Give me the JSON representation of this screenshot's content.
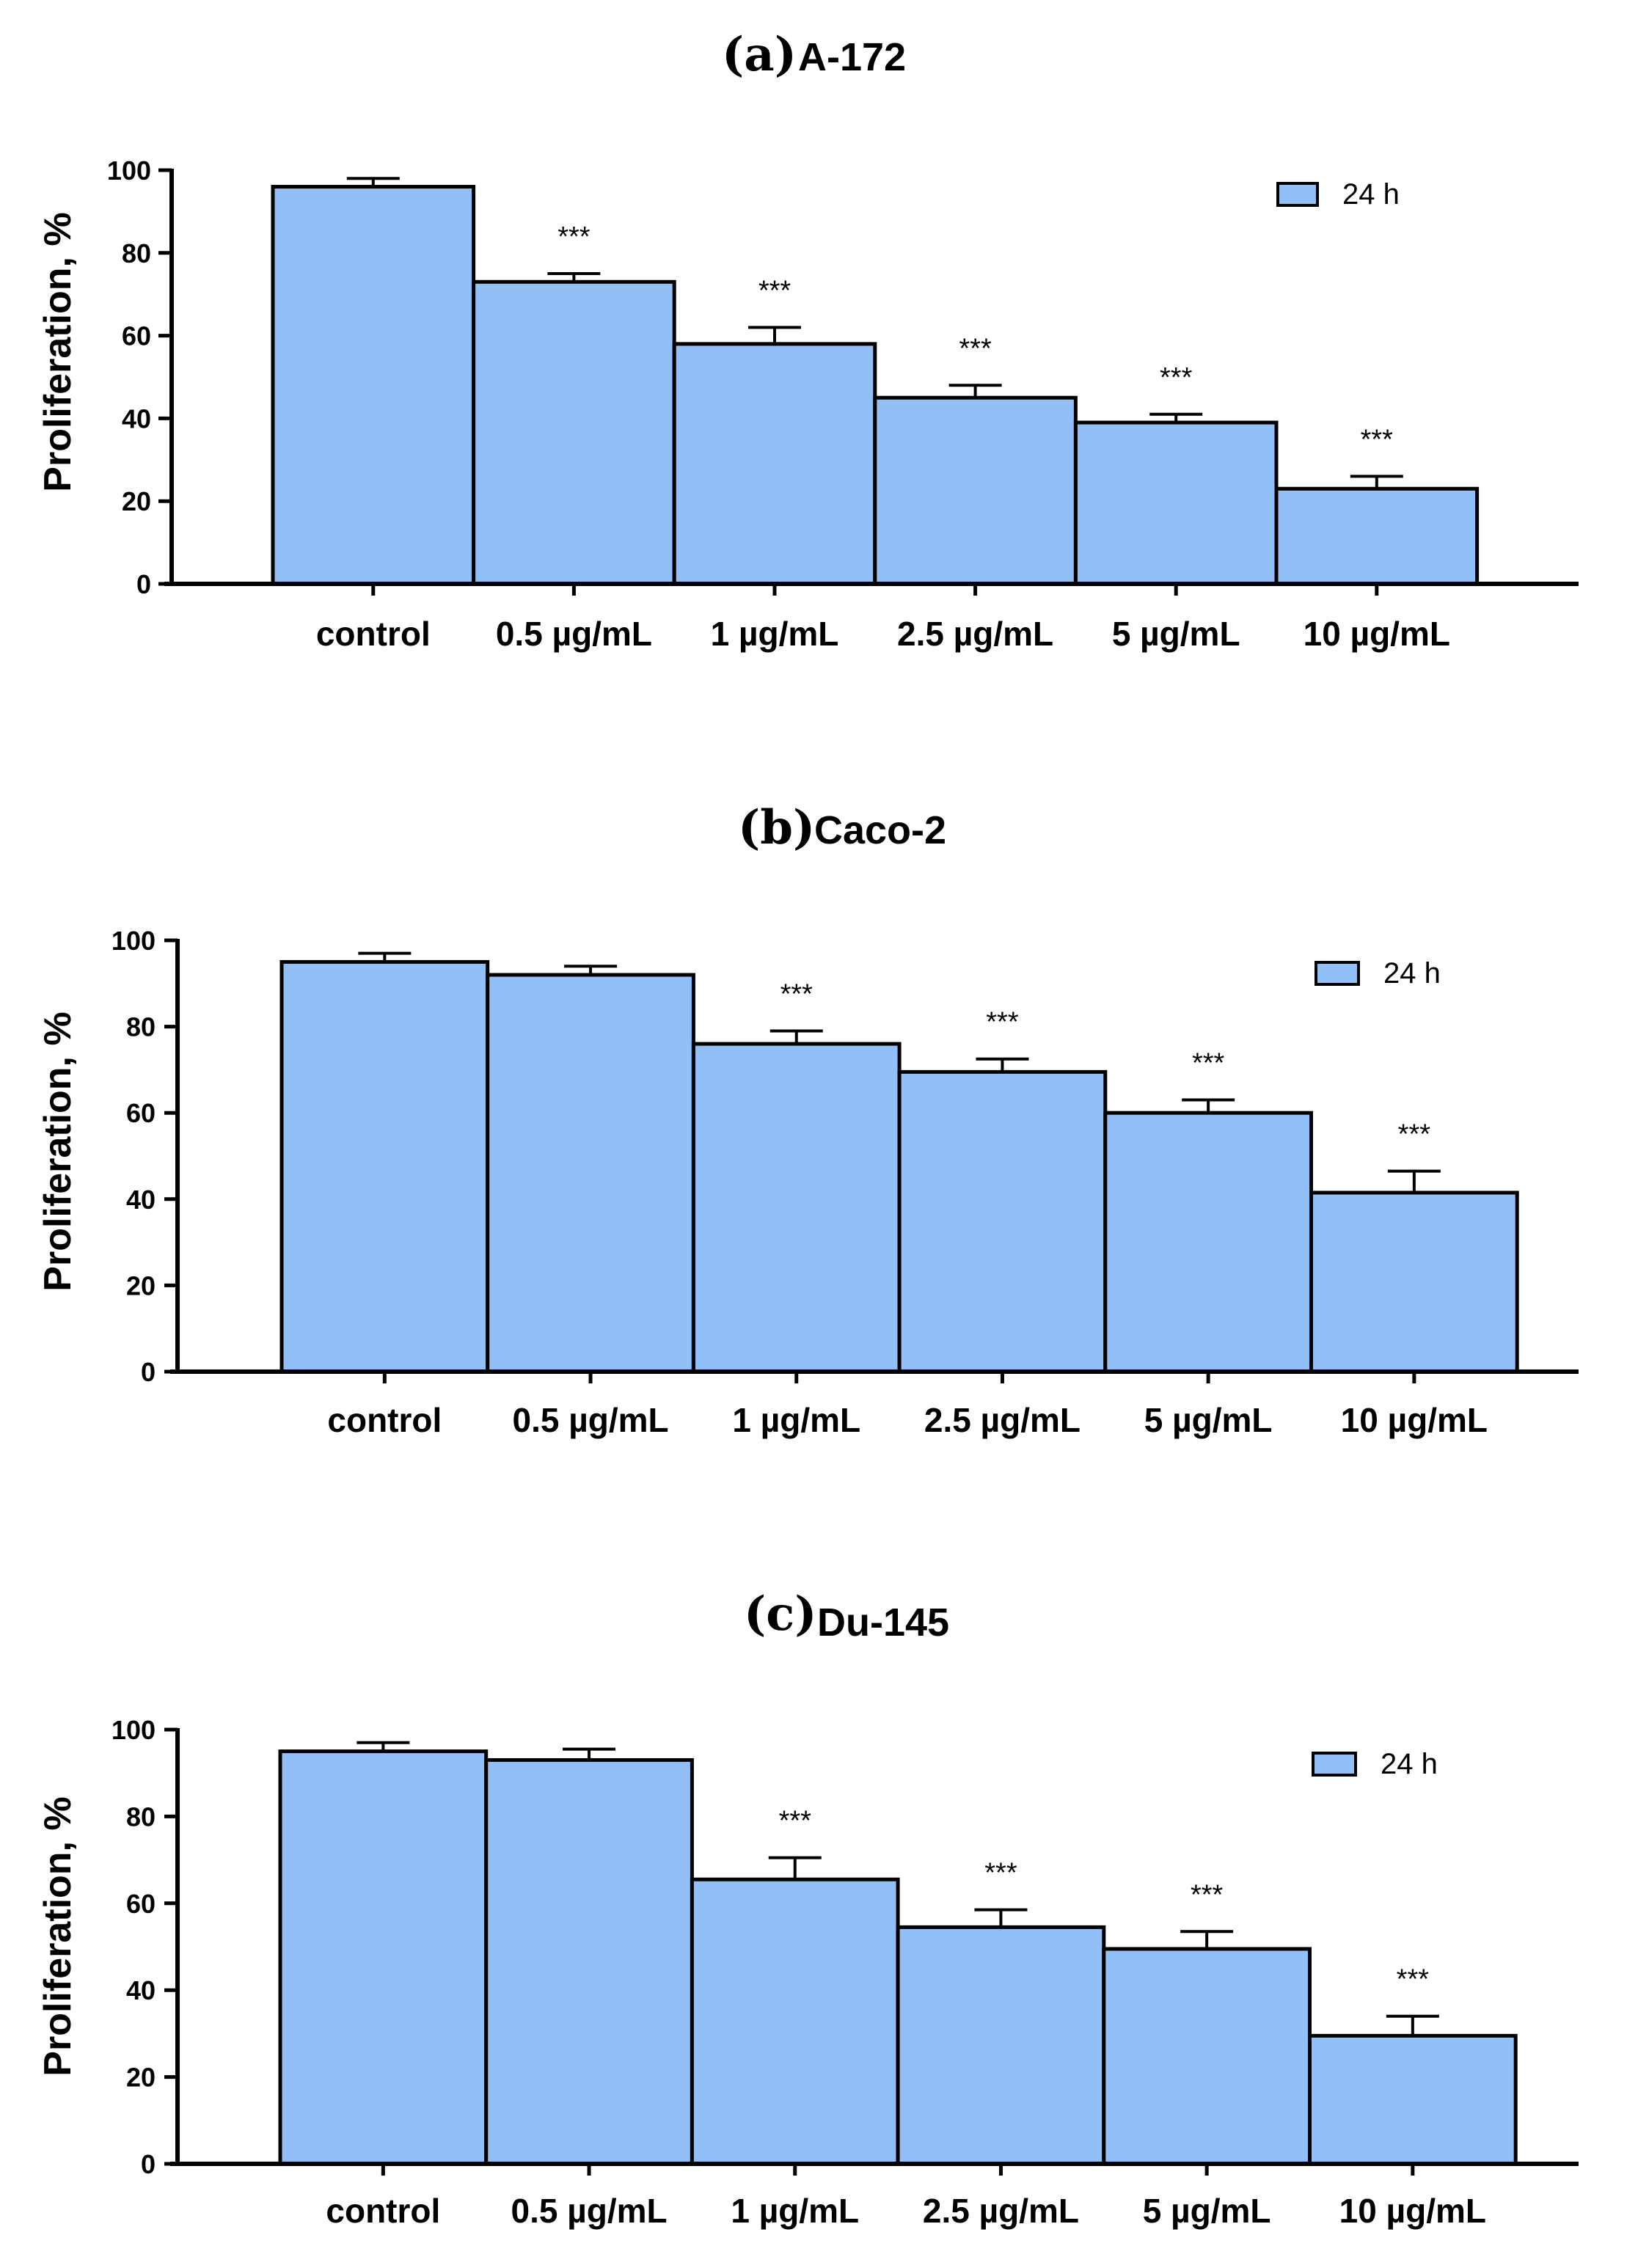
{
  "colors": {
    "bar_fill": "#93bff7",
    "stroke": "#000000"
  },
  "chart_data": [
    {
      "type": "bar",
      "panel": "(a)",
      "title": "A-172",
      "ylabel": "Proliferation, %",
      "xlabel": "",
      "ylim": [
        0,
        100
      ],
      "yticks": [
        0,
        20,
        40,
        60,
        80,
        100
      ],
      "categories": [
        "control",
        "0.5 µg/mL",
        "1 µg/mL",
        "2.5 µg/mL",
        "5 µg/mL",
        "10 µg/mL"
      ],
      "series": [
        {
          "name": "24 h",
          "values": [
            96,
            73,
            58,
            45,
            39,
            23
          ],
          "errors": [
            2,
            2,
            4,
            3,
            2,
            3
          ]
        }
      ],
      "significance": [
        "",
        "***",
        "***",
        "***",
        "***",
        "***"
      ],
      "legend": [
        "24 h"
      ],
      "legend_position": "top-right"
    },
    {
      "type": "bar",
      "panel": "(b)",
      "title": "Caco-2",
      "ylabel": "Proliferation, %",
      "xlabel": "",
      "ylim": [
        0,
        100
      ],
      "yticks": [
        0,
        20,
        40,
        60,
        80,
        100
      ],
      "categories": [
        "control",
        "0.5 µg/mL",
        "1 µg/mL",
        "2.5 µg/mL",
        "5 µg/mL",
        "10 µg/mL"
      ],
      "series": [
        {
          "name": "24 h",
          "values": [
            95,
            92,
            76,
            69.5,
            60,
            41.5
          ],
          "errors": [
            2,
            2,
            3,
            3,
            3,
            5
          ]
        }
      ],
      "significance": [
        "",
        "",
        "***",
        "***",
        "***",
        "***"
      ],
      "legend": [
        "24 h"
      ],
      "legend_position": "top-right"
    },
    {
      "type": "bar",
      "panel": "(c)",
      "title": "Du-145",
      "ylabel": "Proliferation, %",
      "xlabel": "",
      "ylim": [
        0,
        100
      ],
      "yticks": [
        0,
        20,
        40,
        60,
        80,
        100
      ],
      "categories": [
        "control",
        "0.5 µg/mL",
        "1 µg/mL",
        "2.5 µg/mL",
        "5 µg/mL",
        "10 µg/mL"
      ],
      "series": [
        {
          "name": "24 h",
          "values": [
            95,
            93,
            65.5,
            54.5,
            49.5,
            29.5
          ],
          "errors": [
            2,
            2.5,
            5,
            4,
            4,
            4.5
          ]
        }
      ],
      "significance": [
        "",
        "",
        "***",
        "***",
        "***",
        "***"
      ],
      "legend": [
        "24 h"
      ],
      "legend_position": "top-right"
    }
  ]
}
